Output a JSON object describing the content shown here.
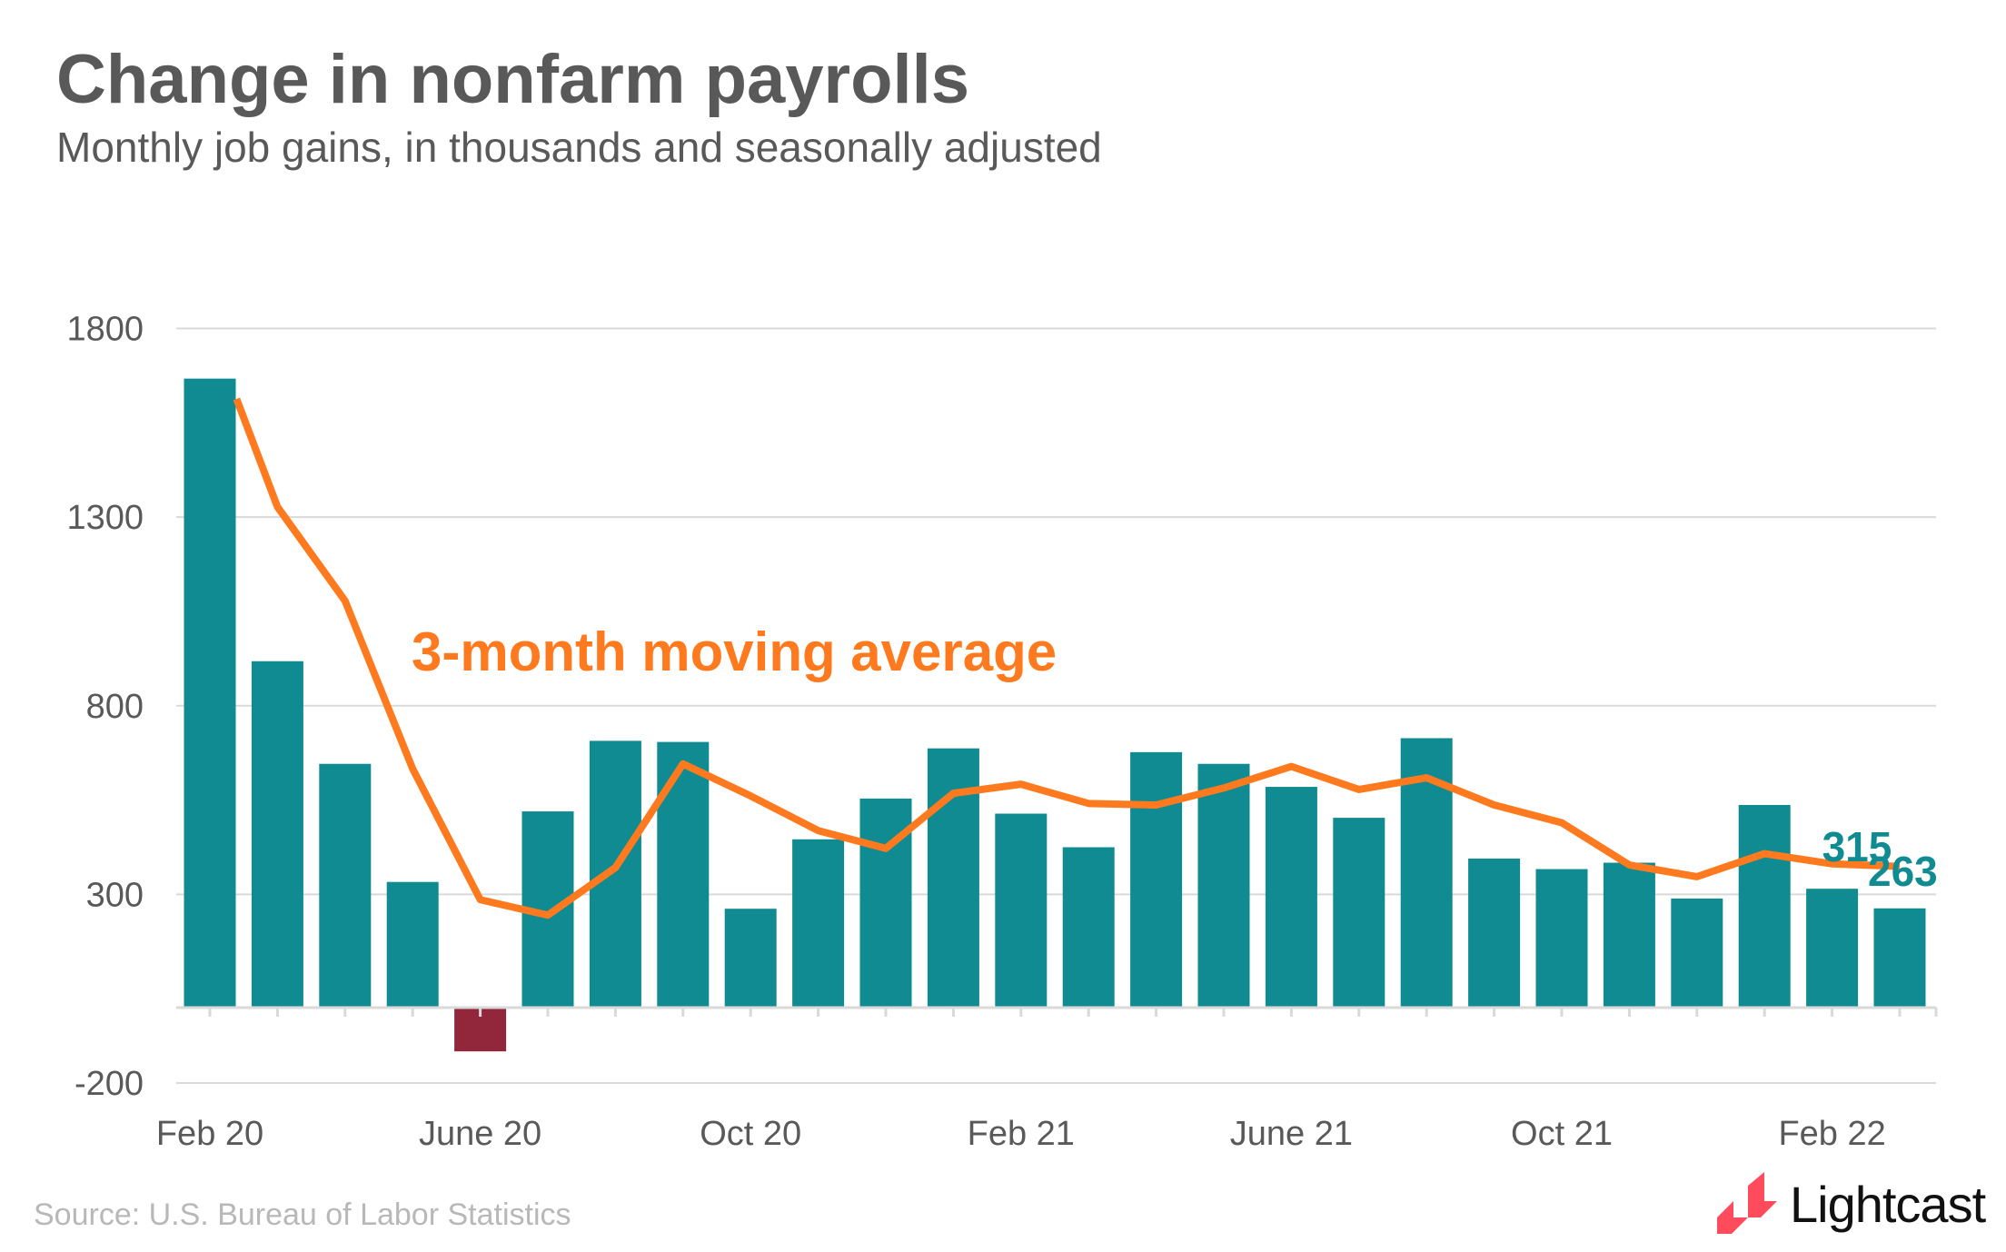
{
  "chart_data": {
    "type": "bar",
    "title": "Change in nonfarm payrolls",
    "subtitle": "Monthly job gains, in thousands and seasonally adjusted",
    "xlabel": "",
    "ylabel": "",
    "ylim": [
      -200,
      2000
    ],
    "yticks": [
      "1800",
      "1300",
      "800",
      "300",
      "-200"
    ],
    "ytick_values": [
      1800,
      1300,
      800,
      300,
      -200
    ],
    "grid": true,
    "xtick_labels": [
      "Feb 20",
      "June 20",
      "Oct 20",
      "Feb 21",
      "June 21",
      "Oct 21",
      "Feb 22"
    ],
    "xtick_bar_indices": [
      0,
      4,
      8,
      12,
      16,
      20,
      24
    ],
    "series": [
      {
        "type": "bar",
        "values": [
          1667,
          918,
          646,
          333,
          -116,
          520,
          707,
          704,
          262,
          446,
          554,
          687,
          514,
          425,
          677,
          646,
          585,
          503,
          714,
          395,
          367,
          384,
          289,
          537,
          315,
          263
        ]
      },
      {
        "type": "line",
        "name": "3-month moving average",
        "values": [
          null,
          1327,
          1078,
          633,
          286,
          245,
          371,
          646,
          561,
          469,
          422,
          568,
          592,
          541,
          537,
          582,
          639,
          578,
          609,
          537,
          490,
          378,
          347,
          408,
          381,
          374
        ]
      }
    ],
    "data_labels": [
      {
        "bar_index": 24,
        "text": "315"
      },
      {
        "bar_index": 25,
        "text": "263"
      }
    ],
    "annotation": "3-month moving average",
    "colors": {
      "bar": "#108b91",
      "negative_bar": "#92263a",
      "line": "#ff7a1f",
      "grid": "#d9d9d9",
      "text": "#595959"
    }
  },
  "source": "Source:  U.S. Bureau of Labor Statistics",
  "logo": {
    "text": "Lightcast",
    "color": "#ff4b5c"
  }
}
